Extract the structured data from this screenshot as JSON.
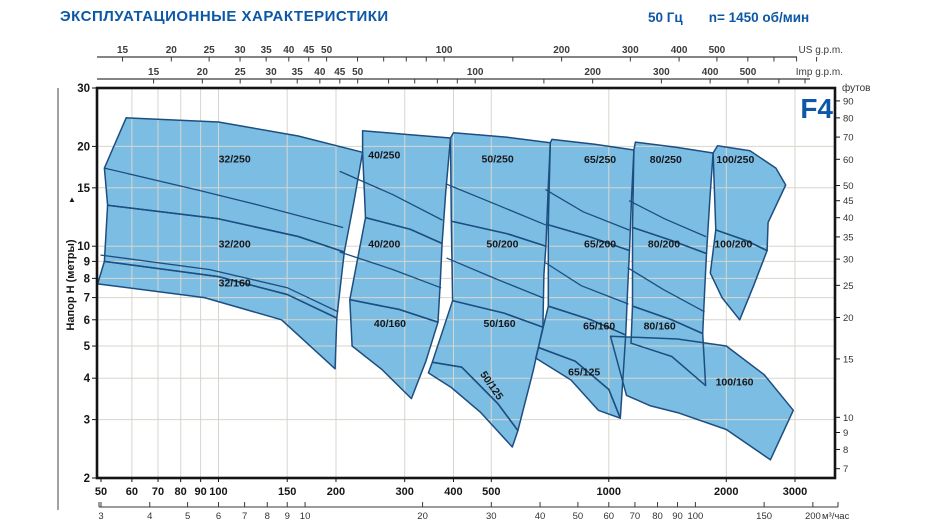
{
  "header": {
    "title": "ЭКСПЛУАТАЦИОННЫЕ  ХАРАКТЕРИСТИКИ",
    "frequency": "50 Гц",
    "speed": "n= 1450 об/мин"
  },
  "colors": {
    "accent": "#0d57a8",
    "region_fill": "#7cbde4",
    "region_stroke": "#1d4e80",
    "grid": "#d9d5cc",
    "axis": "#3a3a3a",
    "frame": "#141414",
    "label_text": "#17171a"
  },
  "chart_data": {
    "type": "area",
    "title": "F4",
    "x_unit_primary_ticks": [
      50,
      60,
      70,
      80,
      90,
      100,
      150,
      200,
      300,
      400,
      500,
      1000,
      2000,
      3000
    ],
    "x_unit_m3h": {
      "label": "м³/час",
      "ticks": [
        3,
        4,
        5,
        6,
        7,
        8,
        9,
        10,
        20,
        30,
        40,
        50,
        60,
        70,
        80,
        90,
        100,
        150,
        200
      ]
    },
    "x_unit_usgpm": {
      "label": "US g.p.m.",
      "ticks": [
        15,
        20,
        25,
        30,
        35,
        40,
        45,
        50,
        100,
        200,
        300,
        400,
        500
      ],
      "minor": [
        60,
        70,
        80,
        90,
        150,
        600,
        700,
        800,
        900
      ]
    },
    "x_unit_impgpm": {
      "label": "Imp g.p.m.",
      "ticks": [
        15,
        20,
        25,
        30,
        35,
        40,
        45,
        50,
        100,
        200,
        300,
        400,
        500
      ],
      "minor": [
        60,
        70,
        80,
        90,
        150,
        600,
        700
      ]
    },
    "y_unit_m": {
      "label": "Напор H (метры)",
      "arrow": "▲",
      "ticks": [
        30,
        20,
        15,
        10,
        9,
        8,
        7,
        6,
        5,
        4,
        3,
        2
      ]
    },
    "y_unit_ft": {
      "label": "футов",
      "ticks": [
        90,
        80,
        70,
        60,
        50,
        45,
        40,
        35,
        30,
        25,
        20,
        15,
        10,
        9,
        8,
        7
      ]
    },
    "grid_v_lmin": [
      60,
      70,
      80,
      90,
      100,
      150,
      200,
      300,
      400,
      500,
      1000,
      2000,
      3000
    ],
    "grid_h_m": [
      20,
      15,
      10,
      9,
      8,
      7,
      6,
      5,
      4,
      3
    ],
    "xlim_lmin": [
      48.8,
      3790
    ],
    "ylim_m": [
      2,
      30
    ],
    "regions": [
      {
        "label": "32/250",
        "label_q": 110,
        "label_h": 17.9,
        "rot": 0,
        "points": [
          [
            58,
            24.4
          ],
          [
            100,
            23.7
          ],
          [
            160,
            21.5
          ],
          [
            234,
            19.2
          ],
          [
            222,
            13.5
          ],
          [
            210,
            9.6
          ],
          [
            160,
            10.7
          ],
          [
            100,
            12.1
          ],
          [
            52,
            13.3
          ],
          [
            51,
            17.2
          ]
        ]
      },
      {
        "label": "32/200",
        "label_q": 110,
        "label_h": 9.9,
        "rot": 0,
        "points": [
          [
            52,
            13.3
          ],
          [
            100,
            12.1
          ],
          [
            160,
            10.7
          ],
          [
            210,
            9.6
          ],
          [
            205,
            7.5
          ],
          [
            201,
            6.07
          ],
          [
            150,
            7.15
          ],
          [
            100,
            8.1
          ],
          [
            51,
            9.0
          ]
        ]
      },
      {
        "label": "32/160",
        "label_q": 110,
        "label_h": 7.55,
        "rot": 0,
        "points": [
          [
            51,
            9.0
          ],
          [
            100,
            8.1
          ],
          [
            150,
            7.15
          ],
          [
            201,
            6.07
          ],
          [
            199,
            4.27
          ],
          [
            145,
            6.0
          ],
          [
            92,
            7.0
          ],
          [
            49,
            7.7
          ]
        ]
      },
      {
        "label": "40/250",
        "label_q": 266,
        "label_h": 18.4,
        "rot": 0,
        "points": [
          [
            234,
            22.3
          ],
          [
            310,
            21.7
          ],
          [
            393,
            21.2
          ],
          [
            382,
            14.5
          ],
          [
            374,
            10.2
          ],
          [
            310,
            11.25
          ],
          [
            238,
            12.2
          ],
          [
            234,
            19.2
          ]
        ]
      },
      {
        "label": "40/200",
        "label_q": 266,
        "label_h": 9.9,
        "rot": 0,
        "points": [
          [
            238,
            12.2
          ],
          [
            310,
            11.25
          ],
          [
            374,
            10.2
          ],
          [
            370,
            7.8
          ],
          [
            365,
            5.9
          ],
          [
            290,
            6.45
          ],
          [
            217,
            6.9
          ]
        ]
      },
      {
        "label": "40/160",
        "label_q": 275,
        "label_h": 5.7,
        "rot": 0,
        "points": [
          [
            217,
            6.9
          ],
          [
            290,
            6.45
          ],
          [
            365,
            5.9
          ],
          [
            340,
            4.5
          ],
          [
            312,
            3.47
          ],
          [
            262,
            4.25
          ],
          [
            220,
            5.0
          ]
        ]
      },
      {
        "label": "50/250",
        "label_q": 519,
        "label_h": 17.9,
        "rot": 0,
        "points": [
          [
            400,
            22.0
          ],
          [
            550,
            21.3
          ],
          [
            708,
            20.5
          ],
          [
            700,
            15.2
          ],
          [
            690,
            10.0
          ],
          [
            550,
            10.9
          ],
          [
            395,
            11.9
          ],
          [
            393,
            21.2
          ]
        ]
      },
      {
        "label": "50/200",
        "label_q": 534,
        "label_h": 9.9,
        "rot": 0,
        "points": [
          [
            395,
            11.9
          ],
          [
            550,
            10.9
          ],
          [
            690,
            10.0
          ],
          [
            682,
            8.2
          ],
          [
            678,
            5.7
          ],
          [
            540,
            6.28
          ],
          [
            398,
            6.85
          ]
        ]
      },
      {
        "label": "50/160",
        "label_q": 525,
        "label_h": 5.7,
        "rot": 0,
        "points": [
          [
            398,
            6.85
          ],
          [
            540,
            6.28
          ],
          [
            678,
            5.7
          ],
          [
            640,
            4.2
          ],
          [
            585,
            2.78
          ],
          [
            520,
            3.35
          ],
          [
            420,
            4.32
          ],
          [
            353,
            4.47
          ]
        ]
      },
      {
        "label": "50/125",
        "label_q": 493,
        "label_h": 3.75,
        "rot": 55,
        "points": [
          [
            353,
            4.47
          ],
          [
            420,
            4.32
          ],
          [
            520,
            3.35
          ],
          [
            585,
            2.78
          ],
          [
            566,
            2.48
          ],
          [
            470,
            3.15
          ],
          [
            395,
            3.75
          ],
          [
            345,
            4.15
          ]
        ]
      },
      {
        "label": "65/250",
        "label_q": 950,
        "label_h": 17.8,
        "rot": 0,
        "points": [
          [
            715,
            21.0
          ],
          [
            920,
            20.3
          ],
          [
            1160,
            19.5
          ],
          [
            1145,
            14.3
          ],
          [
            1130,
            9.7
          ],
          [
            900,
            10.65
          ],
          [
            700,
            11.6
          ],
          [
            708,
            20.5
          ]
        ]
      },
      {
        "label": "65/200",
        "label_q": 950,
        "label_h": 9.9,
        "rot": 0,
        "points": [
          [
            700,
            11.6
          ],
          [
            900,
            10.65
          ],
          [
            1130,
            9.7
          ],
          [
            1118,
            7.5
          ],
          [
            1105,
            5.4
          ],
          [
            900,
            6.0
          ],
          [
            700,
            6.6
          ]
        ]
      },
      {
        "label": "65/160",
        "label_q": 945,
        "label_h": 5.6,
        "rot": 0,
        "points": [
          [
            700,
            6.6
          ],
          [
            900,
            6.0
          ],
          [
            1105,
            5.4
          ],
          [
            1090,
            4.2
          ],
          [
            1070,
            3.03
          ],
          [
            1000,
            3.7
          ],
          [
            820,
            4.5
          ],
          [
            660,
            4.95
          ]
        ]
      },
      {
        "label": "65/125",
        "label_q": 865,
        "label_h": 4.08,
        "rot": 0,
        "points": [
          [
            660,
            4.95
          ],
          [
            820,
            4.5
          ],
          [
            1000,
            3.7
          ],
          [
            1070,
            3.03
          ],
          [
            940,
            3.2
          ],
          [
            800,
            3.95
          ],
          [
            650,
            4.6
          ]
        ]
      },
      {
        "label": "80/250",
        "label_q": 1400,
        "label_h": 17.8,
        "rot": 0,
        "points": [
          [
            1170,
            20.6
          ],
          [
            1480,
            19.9
          ],
          [
            1850,
            19.1
          ],
          [
            1815,
            13.8
          ],
          [
            1780,
            9.5
          ],
          [
            1450,
            10.4
          ],
          [
            1150,
            11.4
          ],
          [
            1160,
            19.5
          ]
        ]
      },
      {
        "label": "80/200",
        "label_q": 1385,
        "label_h": 9.9,
        "rot": 0,
        "points": [
          [
            1150,
            11.4
          ],
          [
            1450,
            10.4
          ],
          [
            1780,
            9.5
          ],
          [
            1760,
            7.3
          ],
          [
            1740,
            5.45
          ],
          [
            1450,
            6.0
          ],
          [
            1150,
            6.6
          ]
        ]
      },
      {
        "label": "80/160",
        "label_q": 1350,
        "label_h": 5.6,
        "rot": 0,
        "points": [
          [
            1150,
            6.6
          ],
          [
            1450,
            6.0
          ],
          [
            1740,
            5.45
          ],
          [
            1755,
            4.6
          ],
          [
            1770,
            3.8
          ],
          [
            1450,
            4.65
          ],
          [
            1140,
            5.1
          ]
        ]
      },
      {
        "label": "100/250",
        "label_q": 2110,
        "label_h": 17.8,
        "rot": 0,
        "points": [
          [
            1900,
            20.1
          ],
          [
            2300,
            19.4
          ],
          [
            2680,
            17.2
          ],
          [
            2840,
            15.3
          ],
          [
            2560,
            11.8
          ],
          [
            2545,
            9.7
          ],
          [
            2250,
            10.4
          ],
          [
            1880,
            11.2
          ],
          [
            1850,
            19.1
          ]
        ]
      },
      {
        "label": "100/200",
        "label_q": 2085,
        "label_h": 9.9,
        "rot": 0,
        "points": [
          [
            1880,
            11.2
          ],
          [
            2250,
            10.4
          ],
          [
            2545,
            9.7
          ],
          [
            2350,
            7.6
          ],
          [
            2165,
            6.0
          ],
          [
            1950,
            7.0
          ],
          [
            1820,
            8.3
          ]
        ]
      },
      {
        "label": "100/160",
        "label_q": 2100,
        "label_h": 3.8,
        "rot": 0,
        "points": [
          [
            1010,
            5.35
          ],
          [
            1500,
            5.25
          ],
          [
            2000,
            5.0
          ],
          [
            2500,
            4.1
          ],
          [
            2970,
            3.2
          ],
          [
            2595,
            2.27
          ],
          [
            2000,
            2.8
          ],
          [
            1500,
            3.15
          ],
          [
            1280,
            3.3
          ],
          [
            1110,
            3.55
          ]
        ]
      }
    ],
    "inner_curves": [
      [
        [
          51,
          17.2
        ],
        [
          90,
          14.7
        ],
        [
          130,
          13.2
        ],
        [
          208,
          11.4
        ]
      ],
      [
        [
          50,
          9.4
        ],
        [
          95,
          8.5
        ],
        [
          150,
          7.5
        ],
        [
          202,
          6.35
        ]
      ],
      [
        [
          205,
          16.8
        ],
        [
          280,
          14.3
        ],
        [
          374,
          12.0
        ]
      ],
      [
        [
          205,
          9.6
        ],
        [
          280,
          8.5
        ],
        [
          371,
          7.5
        ]
      ],
      [
        [
          383,
          15.4
        ],
        [
          520,
          13.3
        ],
        [
          688,
          11.6
        ]
      ],
      [
        [
          385,
          9.2
        ],
        [
          510,
          8.0
        ],
        [
          676,
          7.0
        ]
      ],
      [
        [
          690,
          14.8
        ],
        [
          860,
          12.7
        ],
        [
          1125,
          11.2
        ]
      ],
      [
        [
          690,
          8.9
        ],
        [
          850,
          7.6
        ],
        [
          1120,
          6.7
        ]
      ],
      [
        [
          1130,
          13.7
        ],
        [
          1390,
          12.1
        ],
        [
          1770,
          10.7
        ]
      ],
      [
        [
          1120,
          8.6
        ],
        [
          1380,
          7.4
        ],
        [
          1755,
          6.35
        ]
      ]
    ]
  }
}
